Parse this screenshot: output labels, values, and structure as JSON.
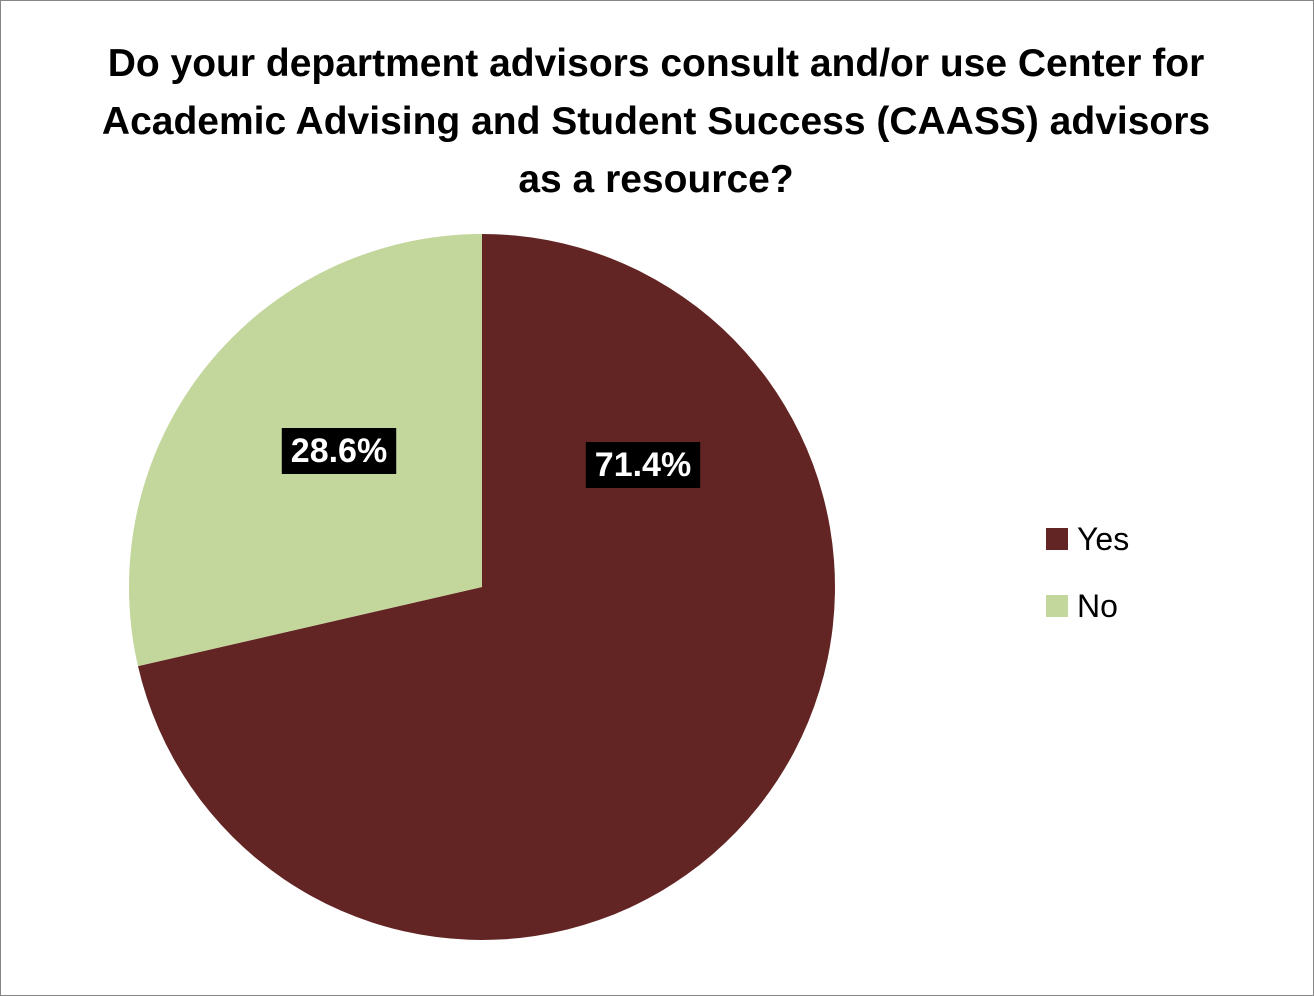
{
  "chart_data": {
    "type": "pie",
    "title": "Do your department advisors consult and/or use Center for Academic Advising and Student Success (CAASS) advisors as a resource?",
    "categories": [
      "Yes",
      "No"
    ],
    "values": [
      71.4,
      28.6
    ],
    "data_labels": [
      "71.4%",
      "28.6%"
    ],
    "colors": [
      "#632523",
      "#c3d69b"
    ],
    "data_label_background": "#000000",
    "legend_position": "right"
  }
}
